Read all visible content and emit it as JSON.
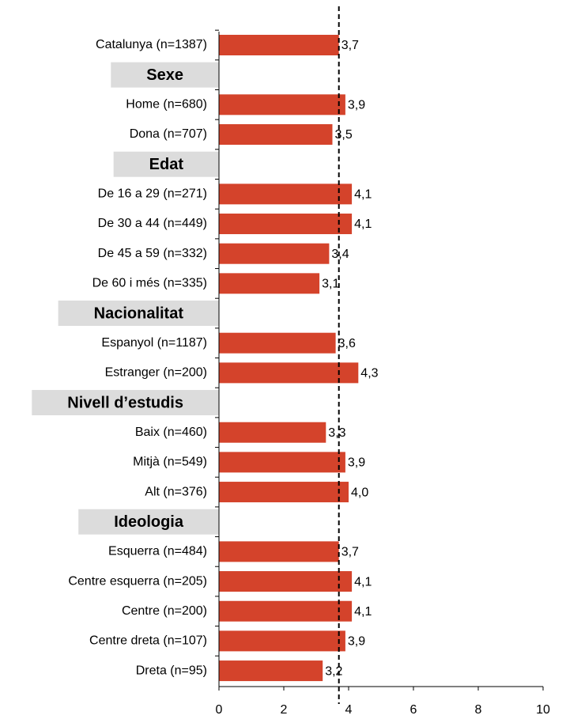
{
  "chart_data": {
    "type": "hbar",
    "categories": [
      "Catalunya (n=1387)",
      "Sexe",
      "Home (n=680)",
      "Dona (n=707)",
      "Edat",
      "De 16 a 29 (n=271)",
      "De 30 a 44 (n=449)",
      "De 45 a 59 (n=332)",
      "De 60 i més (n=335)",
      "Nacionalitat",
      "Espanyol (n=1187)",
      "Estranger (n=200)",
      "Nivell d’estudis",
      "Baix (n=460)",
      "Mitjà (n=549)",
      "Alt (n=376)",
      "Ideologia",
      "Esquerra (n=484)",
      "Centre esquerra (n=205)",
      "Centre (n=200)",
      "Centre dreta (n=107)",
      "Dreta (n=95)"
    ],
    "values": [
      3.7,
      null,
      3.9,
      3.5,
      null,
      4.1,
      4.1,
      3.4,
      3.1,
      null,
      3.6,
      4.3,
      null,
      3.3,
      3.9,
      4.0,
      null,
      3.7,
      4.1,
      4.1,
      3.9,
      3.2
    ],
    "value_labels": [
      "3,7",
      null,
      "3,9",
      "3,5",
      null,
      "4,1",
      "4,1",
      "3,4",
      "3,1",
      null,
      "3,6",
      "4,3",
      null,
      "3,3",
      "3,9",
      "4,0",
      null,
      "3,7",
      "4,1",
      "4,1",
      "3,9",
      "3,2"
    ],
    "color": "#d4432b",
    "reference_line": 3.7,
    "xlim": [
      0,
      10
    ],
    "xticks": [
      0,
      2,
      4,
      6,
      8,
      10
    ]
  }
}
